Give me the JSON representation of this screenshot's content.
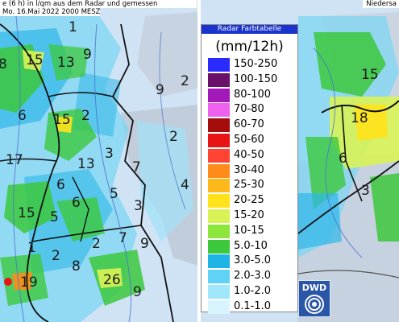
{
  "left_panel": {
    "caption_line1": "e (6 h) in l/qm aus dem Radar und gemessen",
    "caption_line2": "Mo. 16.Mai 2022 2000 MESZ",
    "numbers": [
      {
        "text": "1"
      },
      {
        "text": "8"
      },
      {
        "text": "15"
      },
      {
        "text": "13"
      },
      {
        "text": "9"
      },
      {
        "text": "9"
      },
      {
        "text": "2"
      },
      {
        "text": "6"
      },
      {
        "text": "15"
      },
      {
        "text": "2"
      },
      {
        "text": "2"
      },
      {
        "text": "17"
      },
      {
        "text": "13"
      },
      {
        "text": "3"
      },
      {
        "text": "7"
      },
      {
        "text": "6"
      },
      {
        "text": "5"
      },
      {
        "text": "4"
      },
      {
        "text": "6"
      },
      {
        "text": "3"
      },
      {
        "text": "15"
      },
      {
        "text": "5"
      },
      {
        "text": "1"
      },
      {
        "text": "2"
      },
      {
        "text": "7"
      },
      {
        "text": "9"
      },
      {
        "text": "2"
      },
      {
        "text": "8"
      },
      {
        "text": "19"
      },
      {
        "text": "26"
      },
      {
        "text": "9"
      }
    ]
  },
  "right_panel": {
    "caption": "Niedersa",
    "numbers": [
      {
        "text": "15"
      },
      {
        "text": "18"
      },
      {
        "text": "6"
      },
      {
        "text": "3"
      }
    ]
  },
  "legend": {
    "header": "Radar Farbtabelle",
    "unit": "(mm/12h)",
    "items": [
      {
        "label": "150-250",
        "color": "#2b2bff"
      },
      {
        "label": "100-150",
        "color": "#6a0f6a"
      },
      {
        "label": "80-100",
        "color": "#a318b8"
      },
      {
        "label": "70-80",
        "color": "#f060f0"
      },
      {
        "label": "60-70",
        "color": "#a50c0c"
      },
      {
        "label": "50-60",
        "color": "#e81515"
      },
      {
        "label": "40-50",
        "color": "#ff4433"
      },
      {
        "label": "30-40",
        "color": "#ff8c1a"
      },
      {
        "label": "25-30",
        "color": "#ffb81a"
      },
      {
        "label": "20-25",
        "color": "#ffe21a"
      },
      {
        "label": "15-20",
        "color": "#d9f255"
      },
      {
        "label": "10-15",
        "color": "#8ce63c"
      },
      {
        "label": "5.0-10",
        "color": "#3cc83c"
      },
      {
        "label": "3.0-5.0",
        "color": "#1fb4e6"
      },
      {
        "label": "2.0-3.0",
        "color": "#5fd2f5"
      },
      {
        "label": "1.0-2.0",
        "color": "#9fe7fa"
      },
      {
        "label": "0.1-1.0",
        "color": "#d8f4fc"
      }
    ]
  },
  "logo": {
    "text": "DWD",
    "icon": "swirl-icon"
  }
}
